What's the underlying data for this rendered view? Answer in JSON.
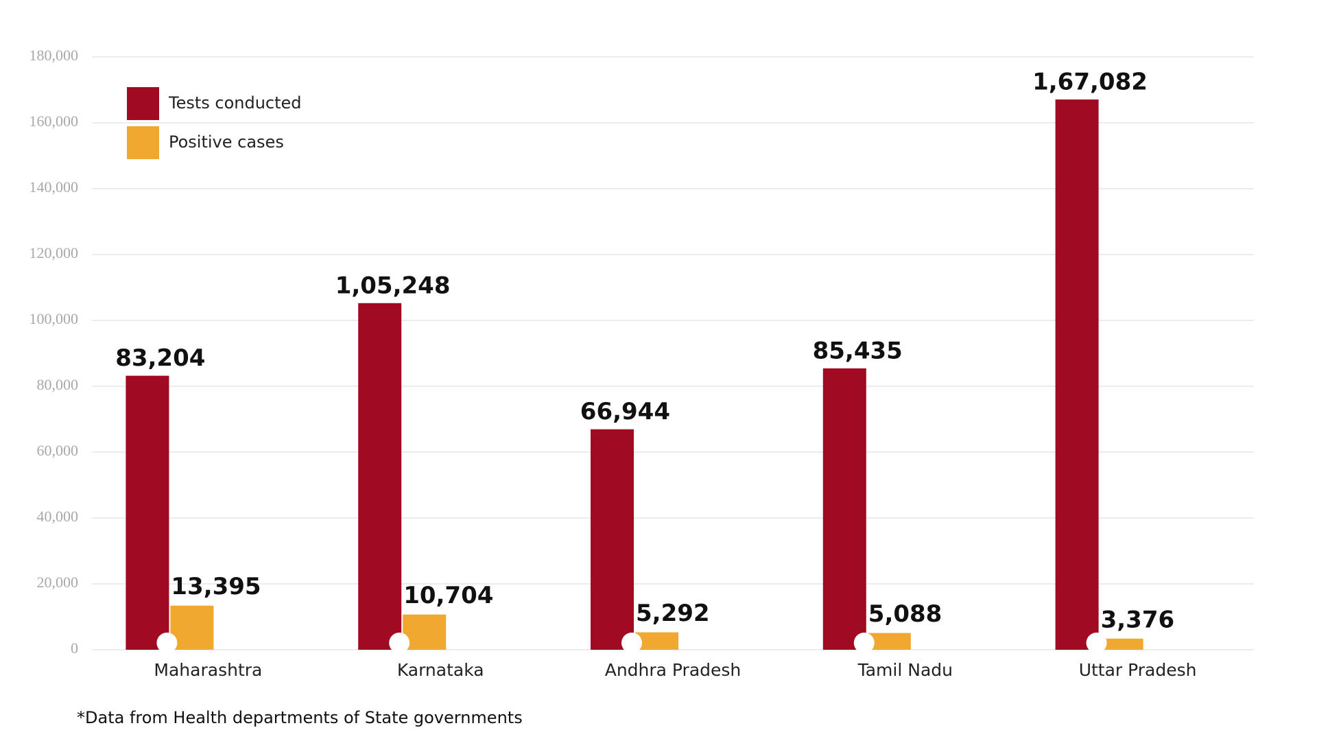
{
  "chart_data": {
    "type": "bar",
    "categories": [
      "Maharashtra",
      "Karnataka",
      "Andhra Pradesh",
      "Tamil Nadu",
      "Uttar Pradesh"
    ],
    "series": [
      {
        "name": "Tests conducted",
        "color": "#a00a22",
        "values": [
          83204,
          105248,
          66944,
          85435,
          167082
        ],
        "value_labels": [
          "83,204",
          "1,05,248",
          "66,944",
          "85,435",
          "1,67,082"
        ]
      },
      {
        "name": "Positive cases",
        "color": "#f0a830",
        "values": [
          13395,
          10704,
          5292,
          5088,
          3376
        ],
        "value_labels": [
          "13,395",
          "10,704",
          "5,292",
          "5,088",
          "3,376"
        ]
      }
    ],
    "ylim": [
      0,
      180000
    ],
    "yticks": [
      0,
      {
        "value": 20000,
        "label": "20,000"
      },
      {
        "value": 40000,
        "label": "40,000"
      },
      {
        "value": 60000,
        "label": "60,000"
      },
      {
        "value": 80000,
        "label": "80,000"
      },
      {
        "value": 100000,
        "label": "100,000"
      },
      {
        "value": 120000,
        "label": "120,000"
      },
      {
        "value": 140000,
        "label": "140,000"
      },
      {
        "value": 160000,
        "label": "160,000"
      },
      {
        "value": 180000,
        "label": "180,000"
      }
    ],
    "grid": true,
    "legend": "upper left",
    "footnote": "*Data from Health departments of State governments"
  }
}
